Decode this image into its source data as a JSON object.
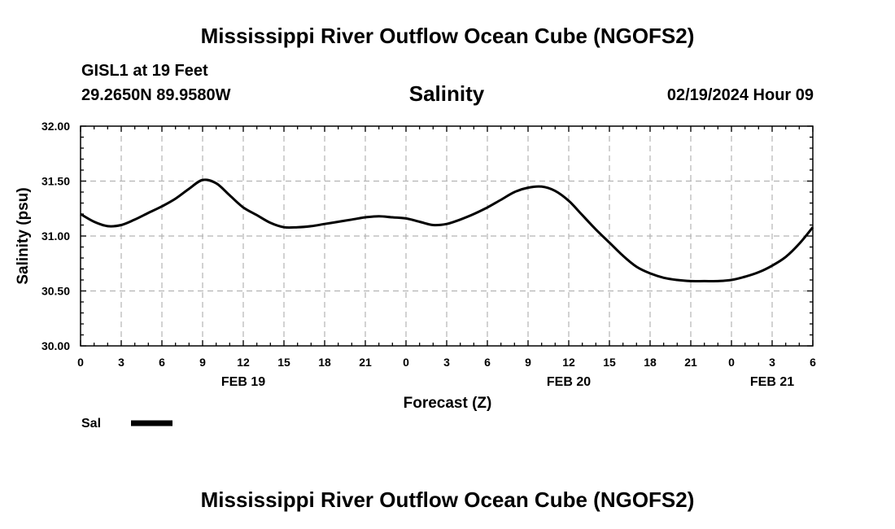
{
  "title": "Mississippi River Outflow Ocean Cube (NGOFS2)",
  "station": "GISL1 at 19 Feet",
  "coords": "29.2650N  89.9580W",
  "datetime": "02/19/2024 Hour 09",
  "footer_title": "Mississippi River Outflow Ocean Cube (NGOFS2)",
  "legend": {
    "label": "Sal",
    "color": "#000000"
  },
  "chart_data": {
    "type": "line",
    "title": "Salinity",
    "xlabel": "Forecast (Z)",
    "ylabel": "Salinity (psu)",
    "xlim": [
      0,
      54
    ],
    "ylim": [
      30.0,
      32.0
    ],
    "grid": true,
    "x_tick_labels": [
      "0",
      "3",
      "6",
      "9",
      "12",
      "15",
      "18",
      "21",
      "0",
      "3",
      "6",
      "9",
      "12",
      "15",
      "18",
      "21",
      "0",
      "3",
      "6"
    ],
    "y_ticks": [
      30.0,
      30.5,
      31.0,
      31.5,
      32.0
    ],
    "y_tick_labels": [
      "30.00",
      "30.50",
      "31.00",
      "31.50",
      "32.00"
    ],
    "date_labels": [
      {
        "label": "FEB 19",
        "x": 12
      },
      {
        "label": "FEB 20",
        "x": 36
      },
      {
        "label": "FEB 21",
        "x": 51
      }
    ],
    "series": [
      {
        "name": "Sal",
        "x": [
          0,
          1,
          2,
          3,
          4,
          5,
          6,
          7,
          8,
          9,
          10,
          11,
          12,
          13,
          14,
          15,
          16,
          17,
          18,
          19,
          20,
          21,
          22,
          23,
          24,
          25,
          26,
          27,
          28,
          29,
          30,
          31,
          32,
          33,
          34,
          35,
          36,
          37,
          38,
          39,
          40,
          41,
          42,
          43,
          44,
          45,
          46,
          47,
          48,
          49,
          50,
          51,
          52,
          53,
          54
        ],
        "values": [
          31.2,
          31.13,
          31.09,
          31.1,
          31.15,
          31.21,
          31.27,
          31.34,
          31.43,
          31.51,
          31.48,
          31.37,
          31.26,
          31.19,
          31.12,
          31.08,
          31.08,
          31.09,
          31.11,
          31.13,
          31.15,
          31.17,
          31.18,
          31.17,
          31.16,
          31.13,
          31.1,
          31.11,
          31.15,
          31.2,
          31.26,
          31.33,
          31.4,
          31.44,
          31.45,
          31.41,
          31.32,
          31.19,
          31.06,
          30.94,
          30.82,
          30.72,
          30.66,
          30.62,
          30.6,
          30.59,
          30.59,
          30.59,
          30.6,
          30.63,
          30.67,
          30.73,
          30.81,
          30.93,
          31.08
        ]
      }
    ]
  }
}
